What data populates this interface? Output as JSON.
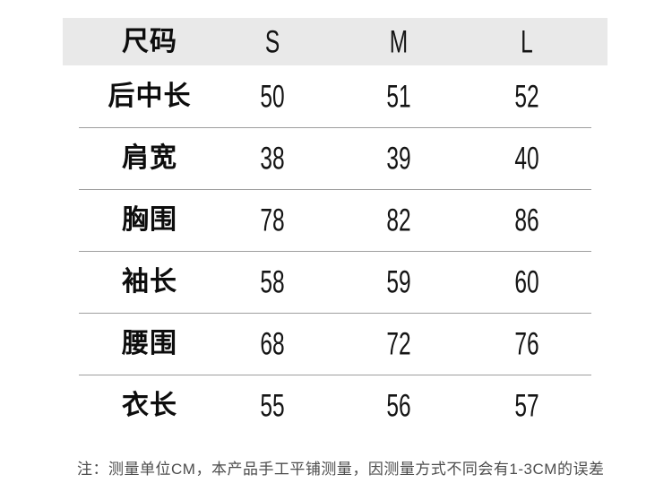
{
  "table": {
    "header": {
      "label": "尺码",
      "sizes": [
        "S",
        "M",
        "L"
      ]
    },
    "rows": [
      {
        "label": "后中长",
        "values": [
          "50",
          "51",
          "52"
        ]
      },
      {
        "label": "肩宽",
        "values": [
          "38",
          "39",
          "40"
        ]
      },
      {
        "label": "胸围",
        "values": [
          "78",
          "82",
          "86"
        ]
      },
      {
        "label": "袖长",
        "values": [
          "58",
          "59",
          "60"
        ]
      },
      {
        "label": "腰围",
        "values": [
          "68",
          "72",
          "76"
        ]
      },
      {
        "label": "衣长",
        "values": [
          "55",
          "56",
          "57"
        ]
      }
    ]
  },
  "note": {
    "text": "注：测量单位CM，本产品手工平铺测量，因测量方式不同会有1-3CM的误差"
  },
  "colors": {
    "page_bg": "#ffffff",
    "header_bg": "#e9e9e9",
    "divider": "#9e9e9e",
    "label_text": "#0d0d0d",
    "value_text": "#141414",
    "note_text": "#4d4d4d"
  }
}
